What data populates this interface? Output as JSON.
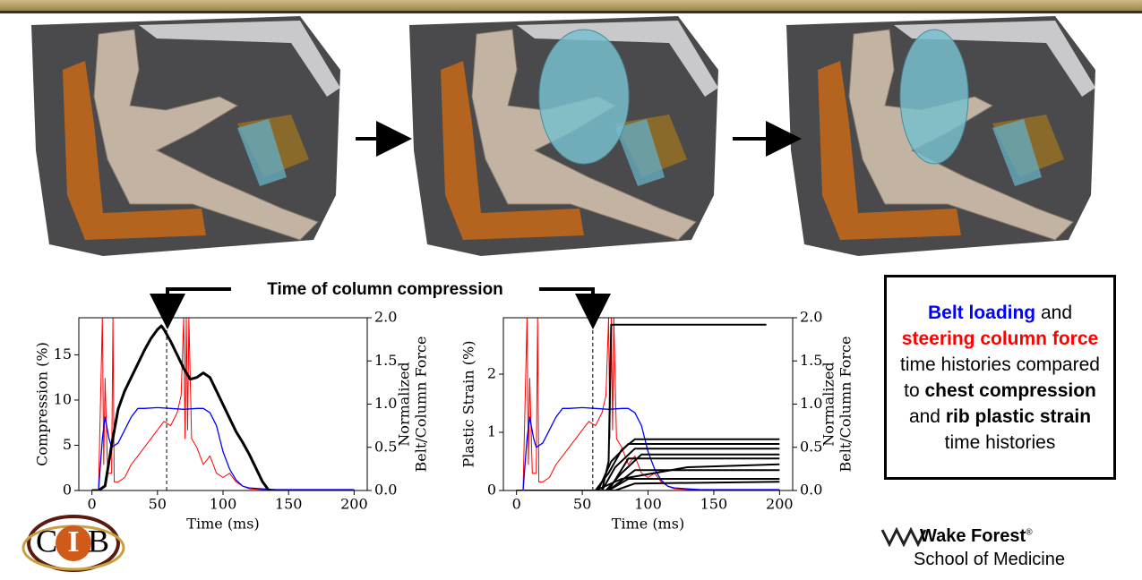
{
  "chart_data": [
    {
      "type": "line",
      "x_label": "Time (ms)",
      "y_label": "Compression (%)",
      "y2_label": [
        "Normalized",
        "Belt/Column Force"
      ],
      "xlim": [
        -10,
        210
      ],
      "xticks": [
        0,
        50,
        100,
        150,
        200
      ],
      "ylim": [
        0,
        19.1
      ],
      "yticks": [
        0,
        5,
        10,
        15
      ],
      "y2lim": [
        0,
        2
      ],
      "y2ticks": [
        {
          "value": 0,
          "label": "0.0"
        },
        {
          "value": 0.5,
          "label": "0.5"
        },
        {
          "value": 1,
          "label": "1.0"
        },
        {
          "value": 1.5,
          "label": "1.5"
        },
        {
          "value": 2,
          "label": "2.0"
        }
      ],
      "vline": 57,
      "series": [
        {
          "color": "#ff0000",
          "axis": "y2",
          "width": 1,
          "x": [
            0,
            5,
            8,
            9,
            10,
            12,
            15,
            16,
            17,
            20,
            25,
            30,
            35,
            40,
            45,
            50,
            55,
            60,
            65,
            68,
            70,
            71,
            72,
            73,
            74,
            76,
            80,
            85,
            90,
            95,
            100,
            105,
            110,
            115,
            120,
            130,
            150,
            200
          ],
          "values": [
            0,
            0,
            2.0,
            0.3,
            1.3,
            0.2,
            0.2,
            2.0,
            0.1,
            0.1,
            0.15,
            0.3,
            0.4,
            0.5,
            0.6,
            0.7,
            0.8,
            0.75,
            0.9,
            1.1,
            2.0,
            0.6,
            2.0,
            0.7,
            2.0,
            0.6,
            0.5,
            0.3,
            0.4,
            0.2,
            0.15,
            0.2,
            0.1,
            0.05,
            0.02,
            0.01,
            0.01,
            0.01
          ]
        },
        {
          "color": "#0000ff",
          "axis": "y2",
          "width": 1.3,
          "x": [
            0,
            5,
            8,
            10,
            13,
            15,
            20,
            25,
            30,
            35,
            40,
            50,
            60,
            70,
            80,
            85,
            90,
            95,
            100,
            105,
            110,
            115,
            120,
            130,
            140,
            150,
            200
          ],
          "values": [
            0,
            0,
            0.6,
            0.85,
            0.6,
            0.5,
            0.55,
            0.7,
            0.85,
            0.95,
            0.95,
            0.96,
            0.95,
            0.94,
            0.95,
            0.95,
            0.9,
            0.75,
            0.45,
            0.25,
            0.12,
            0.05,
            0.03,
            0.02,
            0.01,
            0.01,
            0.01
          ]
        },
        {
          "color": "#000000",
          "axis": "y",
          "width": 3,
          "x": [
            0,
            5,
            10,
            15,
            20,
            25,
            30,
            35,
            40,
            45,
            50,
            53,
            55,
            60,
            65,
            70,
            75,
            80,
            85,
            90,
            95,
            100,
            105,
            110,
            115,
            120,
            125,
            130,
            135,
            140
          ],
          "values": [
            0,
            0,
            0.5,
            5,
            9,
            11,
            12.5,
            14,
            15.5,
            16.8,
            17.8,
            18.2,
            17.8,
            16.5,
            15,
            13.5,
            12.3,
            12.5,
            13,
            12.5,
            11,
            9.5,
            8,
            6.5,
            5.3,
            4,
            2.5,
            1,
            0,
            0
          ]
        }
      ]
    },
    {
      "type": "line",
      "x_label": "Time (ms)",
      "y_label": "Plastic Strain (%)",
      "y2_label": [
        "Normalized",
        "Belt/Column Force"
      ],
      "xlim": [
        -10,
        210
      ],
      "xticks": [
        0,
        50,
        100,
        150,
        200
      ],
      "ylim": [
        0,
        2.97
      ],
      "yticks": [
        0,
        1,
        2
      ],
      "y2lim": [
        0,
        2
      ],
      "y2ticks": [
        {
          "value": 0,
          "label": "0.0"
        },
        {
          "value": 0.5,
          "label": "0.5"
        },
        {
          "value": 1,
          "label": "1.0"
        },
        {
          "value": 1.5,
          "label": "1.5"
        },
        {
          "value": 2,
          "label": "2.0"
        }
      ],
      "vline": 58,
      "series": [
        {
          "color": "#ff0000",
          "axis": "y2",
          "width": 1,
          "x": [
            0,
            5,
            8,
            9,
            10,
            12,
            15,
            16,
            17,
            20,
            25,
            30,
            35,
            40,
            45,
            50,
            55,
            60,
            65,
            68,
            70,
            71,
            72,
            73,
            74,
            76,
            80,
            85,
            90,
            95,
            100,
            105,
            110,
            115,
            120,
            130,
            150,
            200
          ],
          "values": [
            0,
            0,
            2.0,
            0.3,
            1.3,
            0.2,
            0.2,
            2.0,
            0.1,
            0.1,
            0.15,
            0.3,
            0.4,
            0.5,
            0.6,
            0.7,
            0.8,
            0.75,
            0.9,
            1.1,
            2.0,
            0.6,
            2.0,
            0.7,
            2.0,
            0.6,
            0.5,
            0.3,
            0.4,
            0.2,
            0.15,
            0.2,
            0.1,
            0.05,
            0.02,
            0.01,
            0.01,
            0.01
          ]
        },
        {
          "color": "#0000ff",
          "axis": "y2",
          "width": 1.3,
          "x": [
            0,
            5,
            8,
            10,
            13,
            15,
            20,
            25,
            30,
            35,
            40,
            50,
            60,
            70,
            80,
            85,
            90,
            95,
            100,
            105,
            110,
            115,
            120,
            130,
            140,
            150,
            200
          ],
          "values": [
            0,
            0,
            0.6,
            0.85,
            0.6,
            0.5,
            0.55,
            0.7,
            0.85,
            0.95,
            0.95,
            0.96,
            0.95,
            0.94,
            0.95,
            0.95,
            0.9,
            0.75,
            0.45,
            0.25,
            0.12,
            0.05,
            0.03,
            0.02,
            0.01,
            0.01,
            0.01
          ]
        },
        {
          "color": "#000000",
          "axis": "y",
          "width": 2,
          "x": [
            0,
            65,
            70,
            72,
            75,
            190
          ],
          "values": [
            0,
            0,
            0.5,
            2.85,
            2.85,
            2.85
          ]
        },
        {
          "color": "#000000",
          "axis": "y",
          "width": 2,
          "x": [
            0,
            60,
            70,
            80,
            90,
            200
          ],
          "values": [
            0,
            0,
            0.3,
            0.7,
            0.88,
            0.88
          ]
        },
        {
          "color": "#000000",
          "axis": "y",
          "width": 2,
          "x": [
            0,
            62,
            72,
            85,
            200
          ],
          "values": [
            0,
            0,
            0.5,
            0.8,
            0.8
          ]
        },
        {
          "color": "#000000",
          "axis": "y",
          "width": 2,
          "x": [
            0,
            65,
            75,
            90,
            200
          ],
          "values": [
            0,
            0,
            0.4,
            0.72,
            0.72
          ]
        },
        {
          "color": "#000000",
          "axis": "y",
          "width": 2,
          "x": [
            0,
            68,
            80,
            95,
            200
          ],
          "values": [
            0,
            0,
            0.3,
            0.62,
            0.62
          ]
        },
        {
          "color": "#000000",
          "axis": "y",
          "width": 2,
          "x": [
            0,
            70,
            85,
            200
          ],
          "values": [
            0,
            0,
            0.55,
            0.55
          ]
        },
        {
          "color": "#000000",
          "axis": "y",
          "width": 2,
          "x": [
            0,
            60,
            80,
            130,
            200
          ],
          "values": [
            0,
            0,
            0.2,
            0.4,
            0.45
          ]
        },
        {
          "color": "#000000",
          "axis": "y",
          "width": 2,
          "x": [
            0,
            70,
            90,
            200
          ],
          "values": [
            0,
            0,
            0.35,
            0.35
          ]
        },
        {
          "color": "#000000",
          "axis": "y",
          "width": 2,
          "x": [
            0,
            70,
            85,
            200
          ],
          "values": [
            0,
            0,
            0.2,
            0.2
          ]
        },
        {
          "color": "#000000",
          "axis": "y",
          "width": 2,
          "x": [
            0,
            75,
            90,
            200
          ],
          "values": [
            0,
            0,
            0.12,
            0.15
          ]
        }
      ]
    }
  ],
  "annotation": "Time of column compression",
  "note": [
    "Belt loading",
    " and ",
    "steering column force",
    " time histories compared to ",
    "chest compression",
    " and ",
    "rib plastic strain",
    " time histories"
  ],
  "logos": {
    "cib": [
      "C",
      "I",
      "B"
    ],
    "wake_forest": "Wake Forest",
    "registered": "®",
    "school": "School of Medicine"
  }
}
